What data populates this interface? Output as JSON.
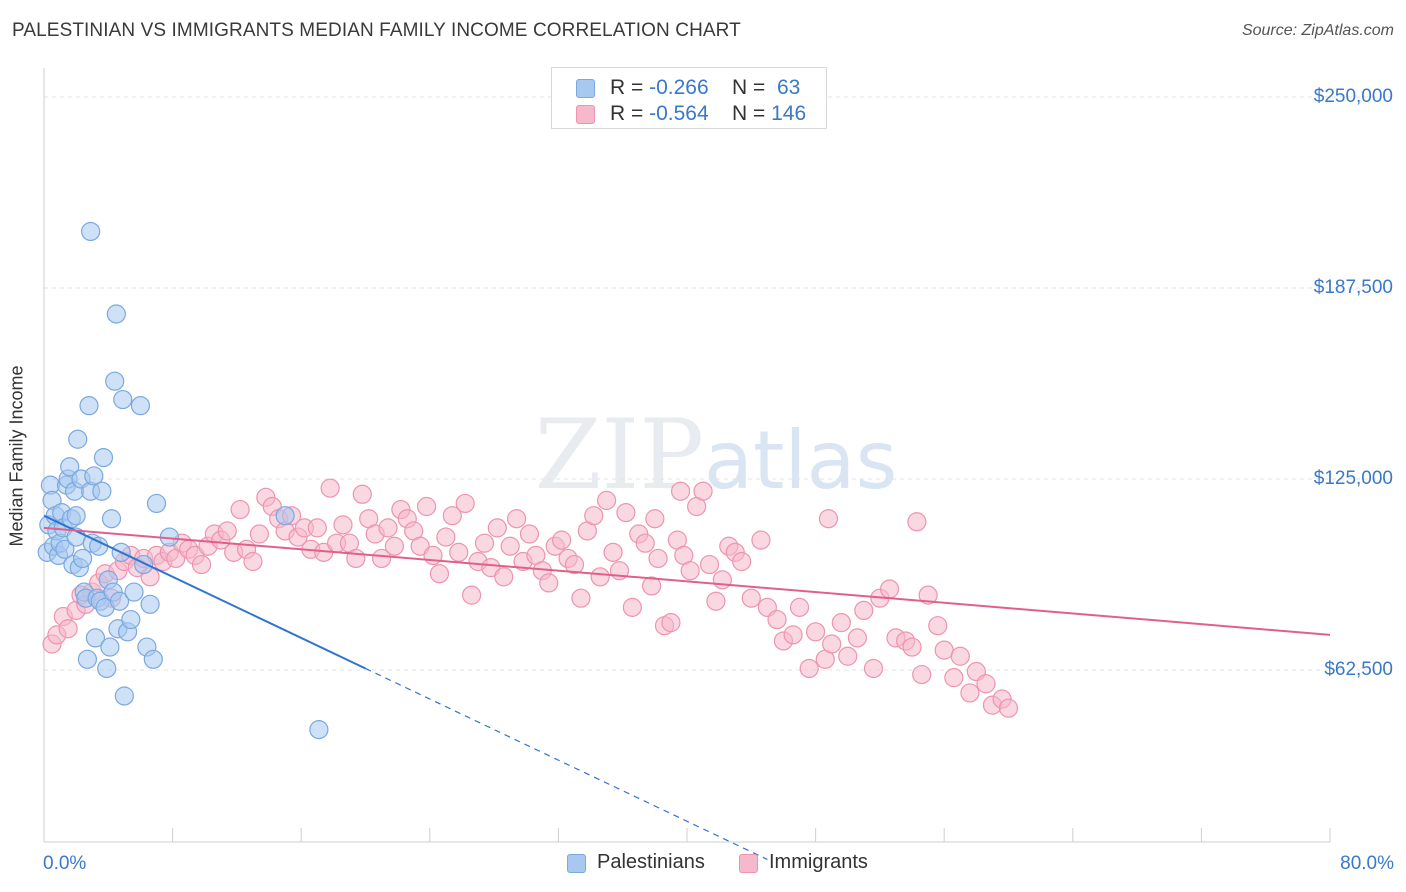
{
  "title": "PALESTINIAN VS IMMIGRANTS MEDIAN FAMILY INCOME CORRELATION CHART",
  "source": "Source: ZipAtlas.com",
  "watermark": "ZIPatlas",
  "legend_top": {
    "rows": [
      {
        "r_label": "R =",
        "r_value": "-0.266",
        "n_label": "N =",
        "n_value": " 63"
      },
      {
        "r_label": "R =",
        "r_value": "-0.564",
        "n_label": "N =",
        "n_value": "146"
      }
    ]
  },
  "legend_bottom": {
    "series1": "Palestinians",
    "series2": "Immigrants"
  },
  "axes": {
    "ylabel": "Median Family Income",
    "yticks": [
      "$250,000",
      "$187,500",
      "$125,000",
      "$62,500"
    ],
    "xtick_left": "0.0%",
    "xtick_right": "80.0%"
  },
  "colors": {
    "palestinians_fill": "#a8c8f0",
    "palestinians_stroke": "#7aa8e0",
    "palestinians_line": "#2f74d0",
    "immigrants_fill": "#f6b8cb",
    "immigrants_stroke": "#ee93b0",
    "immigrants_line": "#e0608a",
    "tick_text": "#3a78c9",
    "grid": "#e3e3e3"
  },
  "chart_data": {
    "type": "scatter",
    "xlim": [
      0,
      80
    ],
    "ylim": [
      0,
      250000
    ],
    "x_unit": "%",
    "grid": true,
    "yticks": [
      62500,
      125000,
      187500,
      250000
    ],
    "series": [
      {
        "name": "Palestinians",
        "trend": {
          "x0": 0,
          "y0": 113000,
          "x1": 20,
          "y1": 63000,
          "dashed_to_x": 45
        },
        "points": [
          [
            0.2,
            101000
          ],
          [
            0.3,
            110000
          ],
          [
            0.4,
            123000
          ],
          [
            0.5,
            118000
          ],
          [
            0.6,
            103000
          ],
          [
            0.7,
            113000
          ],
          [
            0.8,
            108000
          ],
          [
            0.9,
            100000
          ],
          [
            1.0,
            104000
          ],
          [
            1.1,
            114000
          ],
          [
            1.2,
            109000
          ],
          [
            1.3,
            102000
          ],
          [
            1.4,
            123000
          ],
          [
            1.5,
            125000
          ],
          [
            1.6,
            129000
          ],
          [
            1.7,
            112000
          ],
          [
            1.8,
            97000
          ],
          [
            1.9,
            121000
          ],
          [
            2.0,
            106000
          ],
          [
            2.1,
            138000
          ],
          [
            2.2,
            96000
          ],
          [
            2.3,
            125000
          ],
          [
            2.4,
            99000
          ],
          [
            2.5,
            88000
          ],
          [
            2.6,
            86000
          ],
          [
            2.7,
            66000
          ],
          [
            2.8,
            149000
          ],
          [
            2.9,
            121000
          ],
          [
            3.0,
            104000
          ],
          [
            3.1,
            126000
          ],
          [
            3.2,
            73000
          ],
          [
            3.3,
            86000
          ],
          [
            3.4,
            103000
          ],
          [
            3.5,
            85000
          ],
          [
            3.6,
            121000
          ],
          [
            3.7,
            132000
          ],
          [
            3.8,
            83000
          ],
          [
            3.9,
            63000
          ],
          [
            4.0,
            92000
          ],
          [
            4.1,
            70000
          ],
          [
            4.2,
            112000
          ],
          [
            4.3,
            88000
          ],
          [
            4.4,
            157000
          ],
          [
            4.5,
            179000
          ],
          [
            4.6,
            76000
          ],
          [
            4.7,
            85000
          ],
          [
            4.8,
            101000
          ],
          [
            4.9,
            151000
          ],
          [
            5.0,
            54000
          ],
          [
            5.2,
            75000
          ],
          [
            5.4,
            79000
          ],
          [
            5.6,
            88000
          ],
          [
            6.0,
            149000
          ],
          [
            6.2,
            97000
          ],
          [
            6.4,
            70000
          ],
          [
            6.6,
            84000
          ],
          [
            6.8,
            66000
          ],
          [
            7.0,
            117000
          ],
          [
            7.8,
            106000
          ],
          [
            2.9,
            206000
          ],
          [
            15.0,
            113000
          ],
          [
            17.1,
            43000
          ],
          [
            2.0,
            113000
          ]
        ]
      },
      {
        "name": "Immigrants",
        "trend": {
          "x0": 0,
          "y0": 109000,
          "x1": 80,
          "y1": 74000
        },
        "points": [
          [
            0.5,
            71000
          ],
          [
            0.8,
            74000
          ],
          [
            1.2,
            80000
          ],
          [
            1.5,
            76000
          ],
          [
            2.0,
            82000
          ],
          [
            2.3,
            87000
          ],
          [
            2.6,
            84000
          ],
          [
            3.0,
            88000
          ],
          [
            3.4,
            91000
          ],
          [
            3.8,
            94000
          ],
          [
            4.2,
            86000
          ],
          [
            4.6,
            95000
          ],
          [
            5.0,
            98000
          ],
          [
            5.4,
            100000
          ],
          [
            5.8,
            96000
          ],
          [
            6.2,
            99000
          ],
          [
            6.6,
            93000
          ],
          [
            7.0,
            100000
          ],
          [
            7.4,
            98000
          ],
          [
            7.8,
            101000
          ],
          [
            8.2,
            99000
          ],
          [
            8.6,
            104000
          ],
          [
            9.0,
            102000
          ],
          [
            9.4,
            100000
          ],
          [
            9.8,
            97000
          ],
          [
            10.2,
            103000
          ],
          [
            10.6,
            107000
          ],
          [
            11.0,
            105000
          ],
          [
            11.4,
            108000
          ],
          [
            11.8,
            101000
          ],
          [
            12.2,
            115000
          ],
          [
            12.6,
            102000
          ],
          [
            13.0,
            98000
          ],
          [
            13.4,
            107000
          ],
          [
            13.8,
            119000
          ],
          [
            14.2,
            116000
          ],
          [
            14.6,
            112000
          ],
          [
            15.0,
            108000
          ],
          [
            15.4,
            113000
          ],
          [
            15.8,
            106000
          ],
          [
            16.2,
            109000
          ],
          [
            16.6,
            102000
          ],
          [
            17.0,
            109000
          ],
          [
            17.4,
            101000
          ],
          [
            17.8,
            122000
          ],
          [
            18.2,
            104000
          ],
          [
            18.6,
            110000
          ],
          [
            19.0,
            104000
          ],
          [
            19.4,
            99000
          ],
          [
            19.8,
            120000
          ],
          [
            20.2,
            112000
          ],
          [
            20.6,
            107000
          ],
          [
            21.0,
            99000
          ],
          [
            21.4,
            109000
          ],
          [
            21.8,
            103000
          ],
          [
            22.2,
            115000
          ],
          [
            22.6,
            112000
          ],
          [
            23.0,
            108000
          ],
          [
            23.4,
            103000
          ],
          [
            23.8,
            116000
          ],
          [
            24.2,
            100000
          ],
          [
            24.6,
            94000
          ],
          [
            25.0,
            106000
          ],
          [
            25.4,
            113000
          ],
          [
            25.8,
            101000
          ],
          [
            26.2,
            117000
          ],
          [
            26.6,
            87000
          ],
          [
            27.0,
            98000
          ],
          [
            27.4,
            104000
          ],
          [
            27.8,
            96000
          ],
          [
            28.2,
            109000
          ],
          [
            28.6,
            93000
          ],
          [
            29.0,
            103000
          ],
          [
            29.4,
            112000
          ],
          [
            29.8,
            98000
          ],
          [
            30.2,
            107000
          ],
          [
            30.6,
            100000
          ],
          [
            31.0,
            95000
          ],
          [
            31.4,
            91000
          ],
          [
            31.8,
            103000
          ],
          [
            32.2,
            105000
          ],
          [
            32.6,
            99000
          ],
          [
            33.0,
            97000
          ],
          [
            33.4,
            86000
          ],
          [
            33.8,
            108000
          ],
          [
            34.2,
            113000
          ],
          [
            34.6,
            93000
          ],
          [
            35.0,
            118000
          ],
          [
            35.4,
            101000
          ],
          [
            35.8,
            95000
          ],
          [
            36.2,
            114000
          ],
          [
            36.6,
            83000
          ],
          [
            37.0,
            107000
          ],
          [
            37.4,
            104000
          ],
          [
            37.8,
            90000
          ],
          [
            38.2,
            99000
          ],
          [
            38.6,
            77000
          ],
          [
            39.0,
            78000
          ],
          [
            39.4,
            105000
          ],
          [
            39.8,
            100000
          ],
          [
            40.2,
            95000
          ],
          [
            40.6,
            116000
          ],
          [
            41.0,
            121000
          ],
          [
            41.4,
            97000
          ],
          [
            41.8,
            85000
          ],
          [
            42.2,
            92000
          ],
          [
            42.6,
            103000
          ],
          [
            43.0,
            101000
          ],
          [
            43.4,
            98000
          ],
          [
            44.0,
            86000
          ],
          [
            44.6,
            105000
          ],
          [
            45.0,
            83000
          ],
          [
            45.6,
            79000
          ],
          [
            46.0,
            72000
          ],
          [
            46.6,
            74000
          ],
          [
            47.0,
            83000
          ],
          [
            47.6,
            63000
          ],
          [
            48.0,
            75000
          ],
          [
            48.6,
            66000
          ],
          [
            49.0,
            71000
          ],
          [
            49.6,
            78000
          ],
          [
            50.0,
            67000
          ],
          [
            50.6,
            73000
          ],
          [
            51.0,
            82000
          ],
          [
            51.6,
            63000
          ],
          [
            52.0,
            86000
          ],
          [
            52.6,
            89000
          ],
          [
            53.0,
            73000
          ],
          [
            53.6,
            72000
          ],
          [
            54.0,
            70000
          ],
          [
            54.6,
            61000
          ],
          [
            55.0,
            87000
          ],
          [
            55.6,
            77000
          ],
          [
            56.0,
            69000
          ],
          [
            56.6,
            60000
          ],
          [
            57.0,
            67000
          ],
          [
            57.6,
            55000
          ],
          [
            58.0,
            62000
          ],
          [
            58.6,
            58000
          ],
          [
            59.0,
            51000
          ],
          [
            59.6,
            53000
          ],
          [
            60.0,
            50000
          ],
          [
            39.6,
            121000
          ],
          [
            38.0,
            112000
          ],
          [
            48.8,
            112000
          ],
          [
            54.3,
            111000
          ]
        ]
      }
    ]
  }
}
